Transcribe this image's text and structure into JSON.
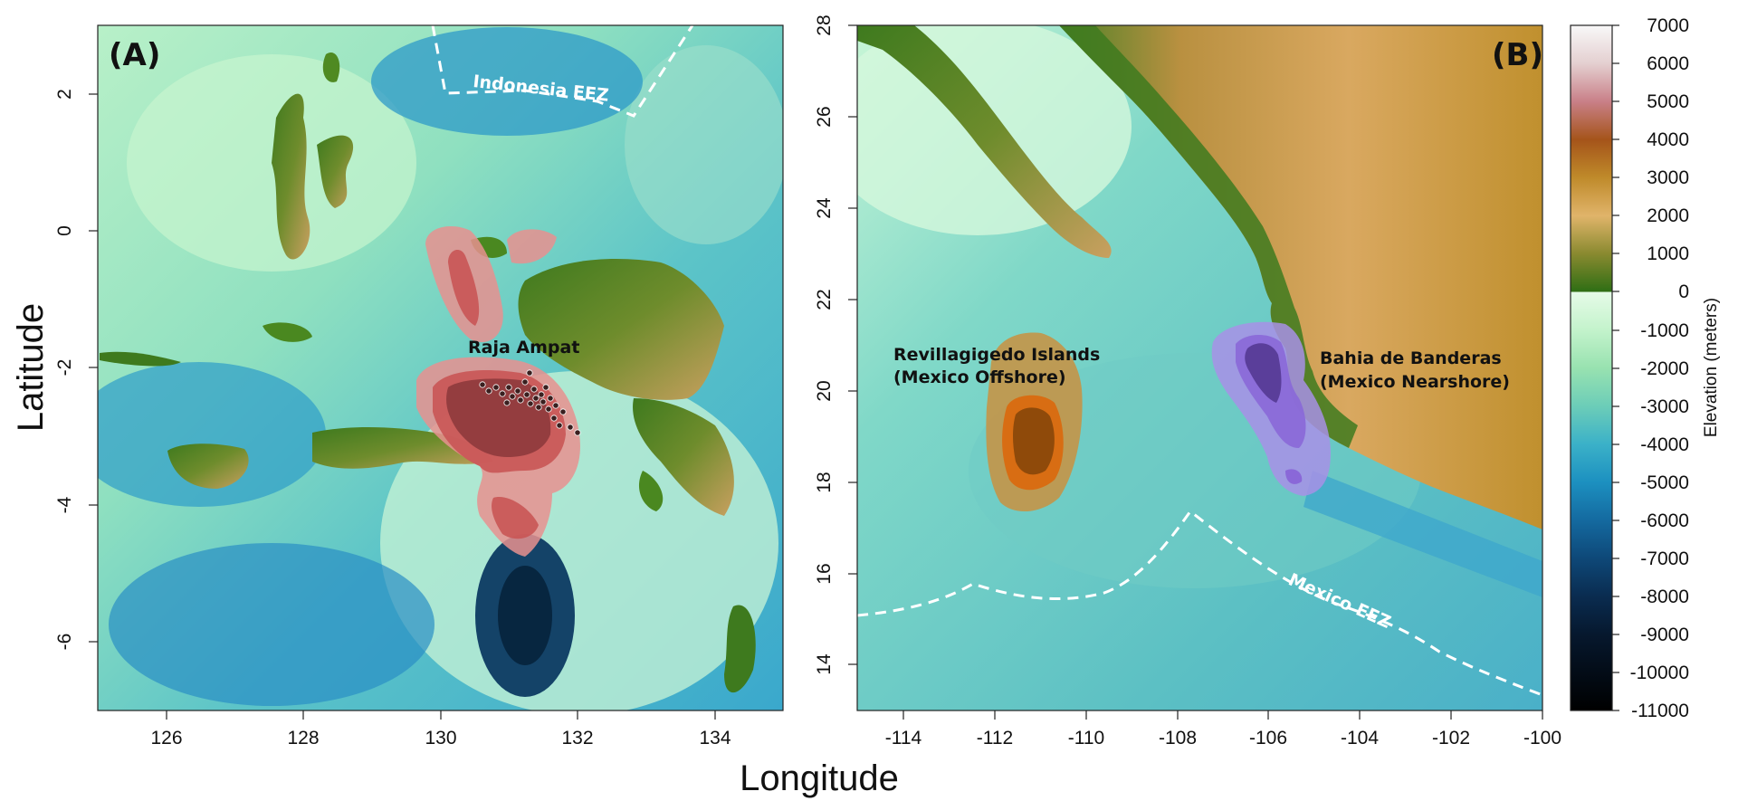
{
  "figure": {
    "xlabel": "Longitude",
    "ylabel": "Latitude"
  },
  "panel_a": {
    "tag": "(A)",
    "region_label": "Raja Ampat",
    "eez_label": "Indonesia EEZ",
    "x_ticks": [
      "126",
      "128",
      "130",
      "132",
      "134"
    ],
    "y_ticks": [
      "2",
      "0",
      "-2",
      "-4",
      "-6"
    ],
    "xlim": [
      125,
      135
    ],
    "ylim": [
      -7,
      3
    ]
  },
  "panel_b": {
    "tag": "(B)",
    "offshore_label_line1": "Revillagigedo Islands",
    "offshore_label_line2": "(Mexico Offshore)",
    "nearshore_label_line1": "Bahia de Banderas",
    "nearshore_label_line2": "(Mexico Nearshore)",
    "eez_label": "Mexico EEZ",
    "x_ticks": [
      "-114",
      "-112",
      "-110",
      "-108",
      "-106",
      "-104",
      "-102",
      "-100"
    ],
    "y_ticks": [
      "28",
      "26",
      "24",
      "22",
      "20",
      "18",
      "16",
      "14"
    ],
    "xlim": [
      -115,
      -100
    ],
    "ylim": [
      13,
      28
    ]
  },
  "colorbar": {
    "title": "Elevation (meters)",
    "ticks": [
      "7000",
      "6000",
      "5000",
      "4000",
      "3000",
      "2000",
      "1000",
      "0",
      "-1000",
      "-2000",
      "-3000",
      "-4000",
      "-5000",
      "-6000",
      "-7000",
      "-8000",
      "-9000",
      "-10000",
      "-11000"
    ],
    "range": [
      -11000,
      7000
    ]
  },
  "colors": {
    "raja_ampat_kernel": "#d9585c",
    "revillagigedo_kernel": "#c8671a",
    "banderas_kernel": "#7b54c8",
    "eez_line": "#ffffff"
  }
}
